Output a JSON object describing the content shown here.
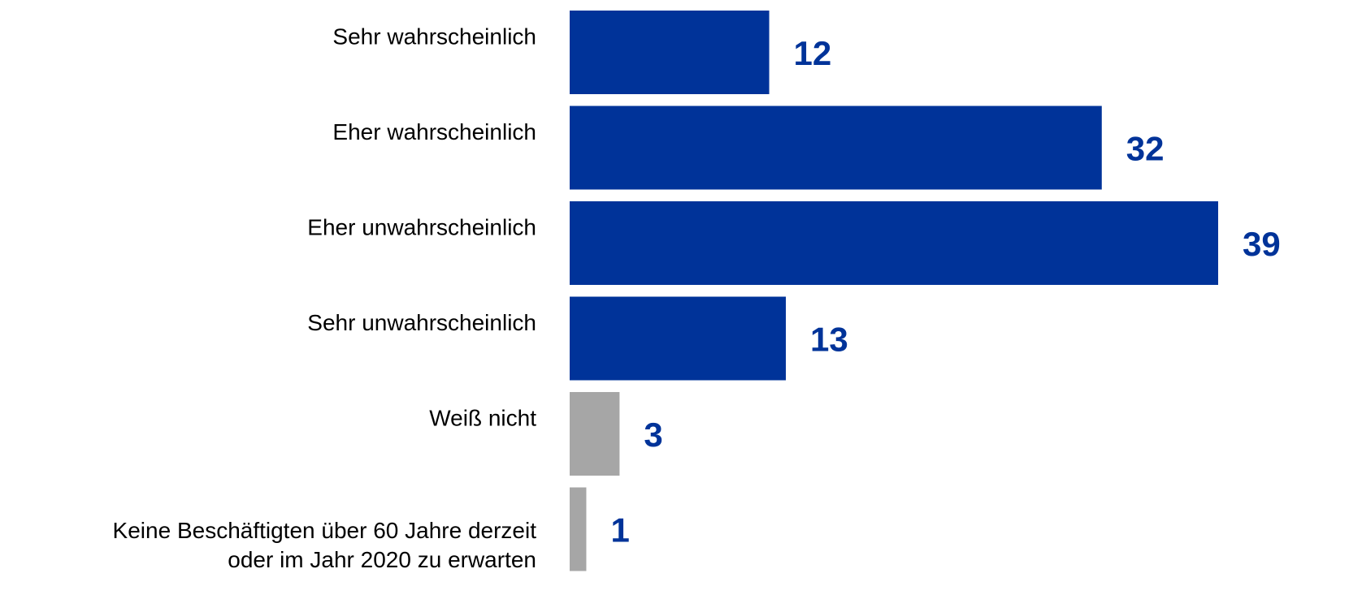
{
  "chart_data": {
    "type": "bar",
    "orientation": "horizontal",
    "categories": [
      "Sehr wahrscheinlich",
      "Eher wahrscheinlich",
      "Eher unwahrscheinlich",
      "Sehr unwahrscheinlich",
      "Weiß nicht",
      [
        "Keine Beschäftigten über 60 Jahre derzeit",
        "oder im Jahr 2020 zu erwarten"
      ]
    ],
    "values": [
      12,
      32,
      39,
      13,
      3,
      1
    ],
    "colors": [
      "#003399",
      "#003399",
      "#003399",
      "#003399",
      "#a6a6a6",
      "#a6a6a6"
    ],
    "value_label_color": "#003399"
  }
}
